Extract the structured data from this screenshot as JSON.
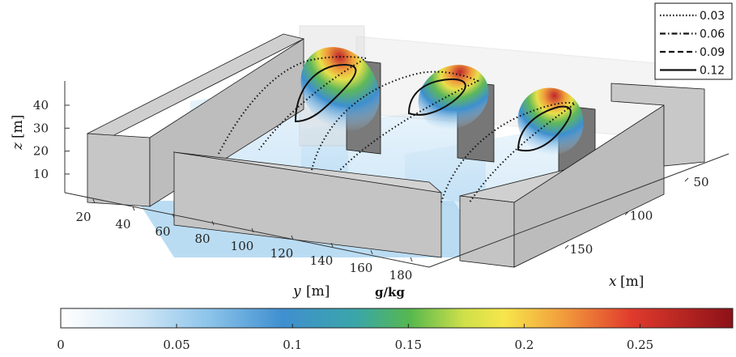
{
  "chart_data": {
    "type": "3d-scene",
    "x_axis": {
      "label": "x",
      "unit": "[m]",
      "ticks": [
        50,
        100,
        150
      ]
    },
    "y_axis": {
      "label": "y",
      "unit": "[m]",
      "ticks": [
        20,
        40,
        60,
        80,
        100,
        120,
        140,
        160,
        180
      ]
    },
    "z_axis": {
      "label": "z",
      "unit": "[m]",
      "ticks": [
        10,
        20,
        30,
        40
      ]
    },
    "legend": {
      "placement": "top-right",
      "entries": [
        {
          "label": "0.03",
          "style": "dotted"
        },
        {
          "label": "0.06",
          "style": "dashdot"
        },
        {
          "label": "0.09",
          "style": "dashed"
        },
        {
          "label": "0.12",
          "style": "solid"
        }
      ]
    },
    "colorbar": {
      "unit_label": "g/kg",
      "range": [
        0,
        0.29
      ],
      "ticks": [
        "0",
        "0.05",
        "0.1",
        "0.15",
        "0.2",
        "0.25"
      ],
      "tick_values": [
        0,
        0.05,
        0.1,
        0.15,
        0.2,
        0.25
      ],
      "colormap": [
        "#ffffff",
        "#bfe0f5",
        "#6fb4e4",
        "#2f7fc4",
        "#4aa85a",
        "#f1e04a",
        "#f08a3a",
        "#d8262a",
        "#8f1218"
      ]
    },
    "colors": {
      "building": "#c8c8c8",
      "building_edge": "#1a1a1a",
      "slice": "#a8d4f0",
      "glass": "#e6e6e6"
    }
  }
}
